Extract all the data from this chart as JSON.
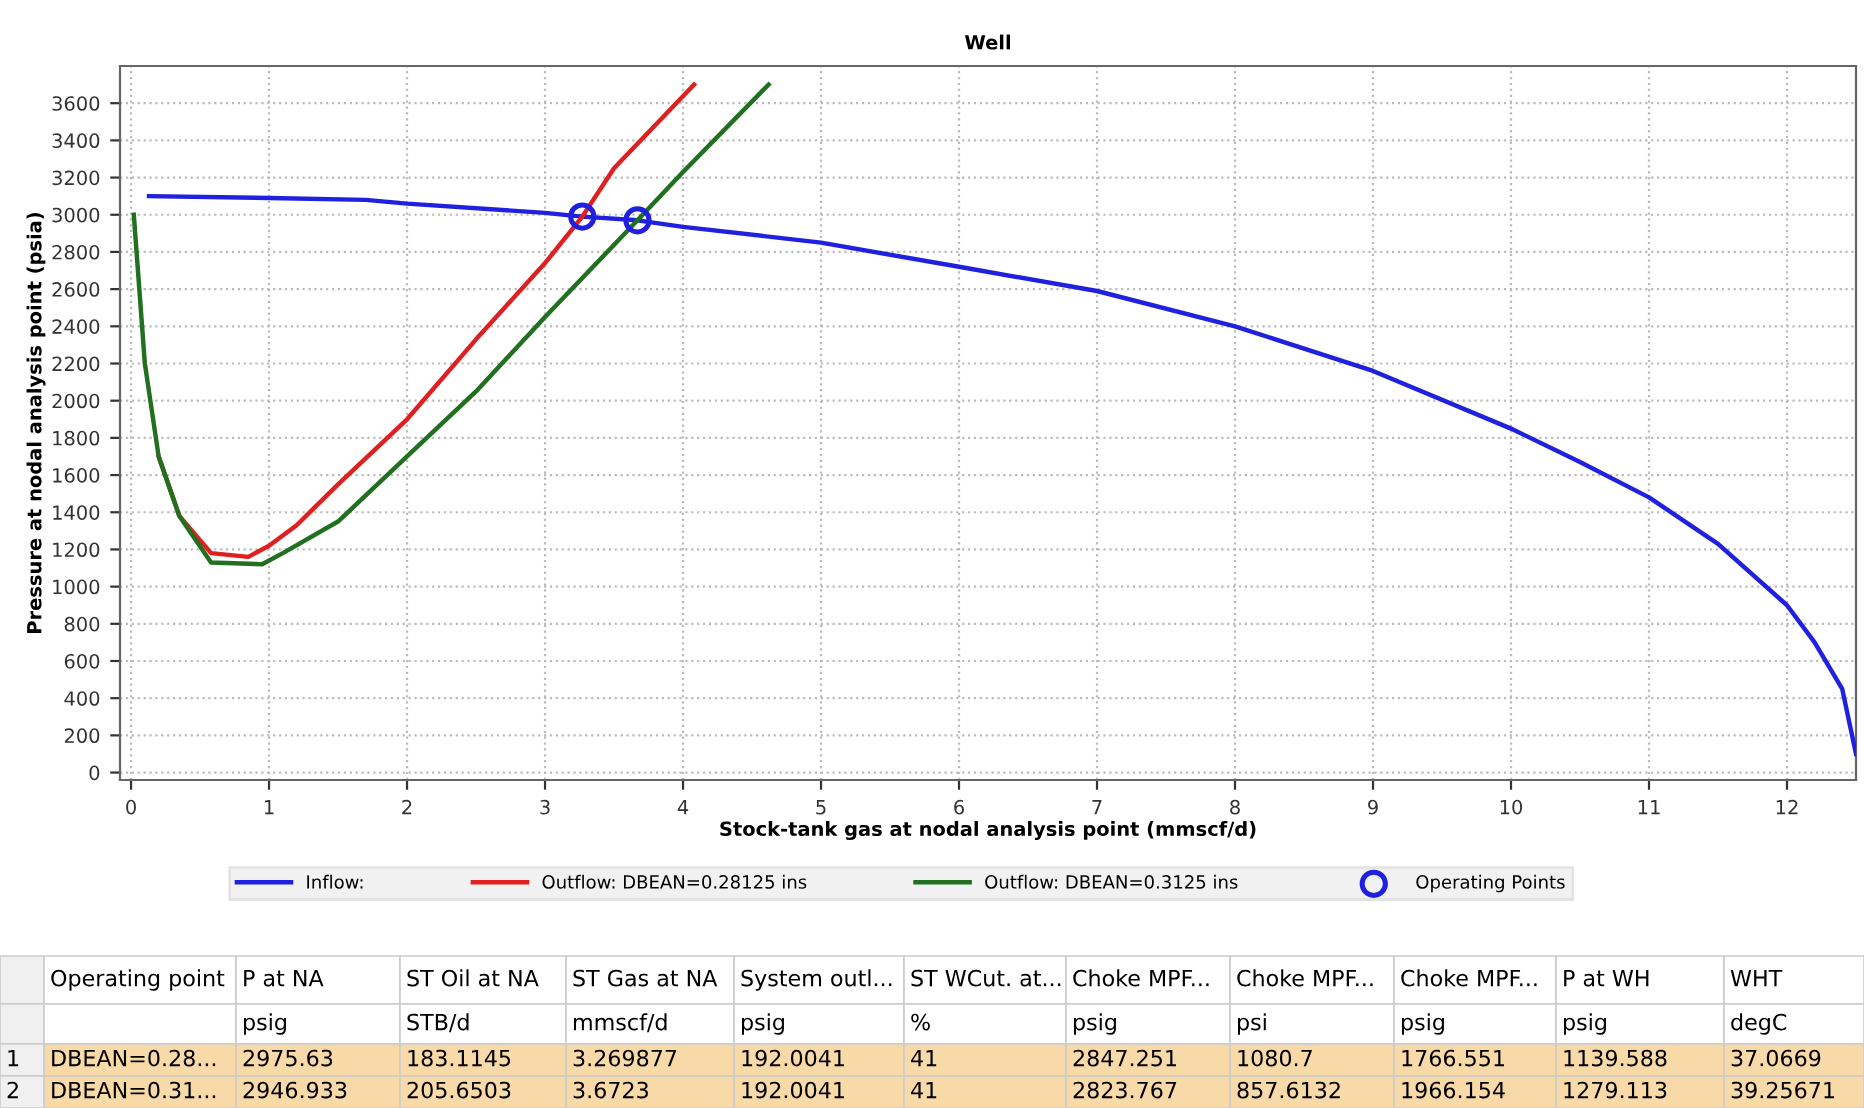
{
  "chart_data": {
    "type": "line",
    "title": "Well",
    "xlabel": "Stock-tank gas at nodal analysis point (mmscf/d)",
    "ylabel": "Pressure at nodal analysis point (psia)",
    "xlim": [
      -0.08,
      12.5
    ],
    "xticks": [
      0,
      1,
      2,
      3,
      4,
      5,
      6,
      7,
      8,
      9,
      10,
      11,
      12
    ],
    "ylim": [
      -40,
      3800
    ],
    "yticks": [
      0,
      200,
      400,
      600,
      800,
      1000,
      1200,
      1400,
      1600,
      1800,
      2000,
      2200,
      2400,
      2600,
      2800,
      3000,
      3200,
      3400,
      3600
    ],
    "grid": true,
    "legend": "bottom",
    "series": [
      {
        "name": "Inflow:",
        "color": "#2020e0",
        "x": [
          0.13,
          1,
          1.7,
          2,
          3,
          3.27,
          3.67,
          4,
          5,
          6,
          7,
          8,
          9,
          10,
          10.5,
          11,
          11.5,
          12,
          12.2,
          12.4,
          12.5
        ],
        "values": [
          3100,
          3090,
          3080,
          3060,
          3010,
          2990,
          2970,
          2935,
          2850,
          2720,
          2590,
          2400,
          2160,
          1850,
          1670,
          1480,
          1230,
          900,
          700,
          450,
          100
        ]
      },
      {
        "name": "Outflow: DBEAN=0.28125 ins",
        "color": "#e02020",
        "x": [
          0.2,
          0.35,
          0.58,
          0.85,
          1,
          1.2,
          1.5,
          2,
          2.5,
          3,
          3.27,
          3.5,
          4.08
        ],
        "values": [
          1700,
          1380,
          1180,
          1160,
          1220,
          1330,
          1550,
          1900,
          2330,
          2740,
          2990,
          3250,
          3700
        ]
      },
      {
        "name": "Outflow: DBEAN=0.3125 ins",
        "color": "#207020",
        "x": [
          0.02,
          0.1,
          0.2,
          0.35,
          0.58,
          0.95,
          1.1,
          1.5,
          2,
          2.5,
          3,
          3.67,
          4,
          4.62
        ],
        "values": [
          3000,
          2200,
          1700,
          1380,
          1130,
          1120,
          1180,
          1350,
          1700,
          2050,
          2450,
          2970,
          3230,
          3700
        ]
      },
      {
        "name": "Operating Points",
        "type": "scatter",
        "marker": "circle",
        "color": "#2020e0",
        "x": [
          3.27,
          3.67
        ],
        "values": [
          2990,
          2970
        ]
      }
    ],
    "annotations": [
      "Operating point",
      "P at NA",
      "ST Oil at NA",
      "ST Gas at NA",
      "System outl...",
      "ST WCut. at...",
      "Choke MPF...",
      "Choke MPF...",
      "Choke MPF...",
      "P at WH",
      "WHT",
      "psig",
      "STB/d",
      "mmscf/d",
      "psig",
      "%",
      "psig",
      "psi",
      "psig",
      "psig",
      "degC",
      "1",
      "DBEAN=0.28...",
      "2975.63",
      "183.1145",
      "3.269877",
      "192.0041",
      "41",
      "2847.251",
      "1080.7",
      "1766.551",
      "1139.588",
      "37.0669",
      "2",
      "DBEAN=0.31...",
      "2946.933",
      "205.6503",
      "3.6723",
      "192.0041",
      "41",
      "2823.767",
      "857.6132",
      "1966.154",
      "1279.113",
      "39.25671"
    ]
  }
}
